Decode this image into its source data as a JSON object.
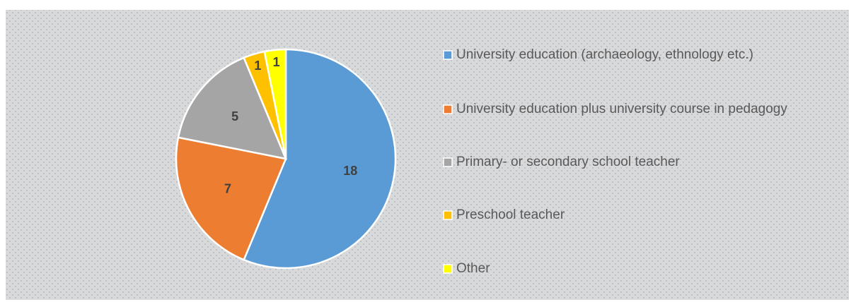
{
  "chart_data": {
    "type": "pie",
    "categories": [
      "University education  (archaeology, ethnology etc.)",
      "University education plus university course in pedagogy",
      "Primary- or secondary school teacher",
      "Preschool teacher",
      "Other"
    ],
    "values": [
      18,
      7,
      5,
      1,
      1
    ],
    "colors": [
      "#5b9bd5",
      "#ed7d31",
      "#a5a5a5",
      "#ffc000",
      "#ffff00"
    ],
    "legend": "right"
  }
}
